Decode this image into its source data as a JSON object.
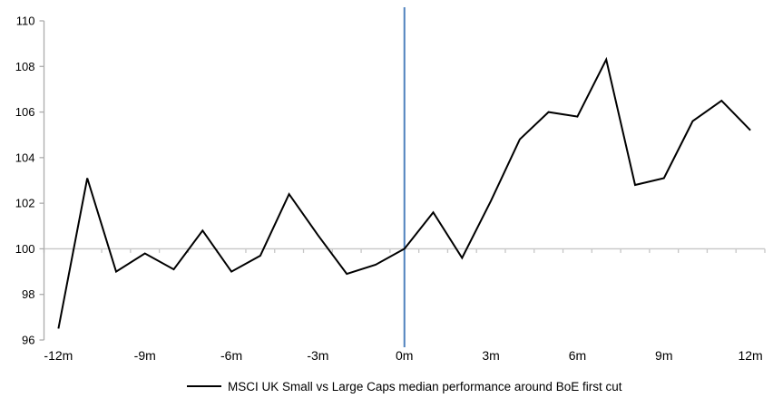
{
  "chart_data": {
    "type": "line",
    "title": "",
    "legend": "MSCI UK Small vs Large Caps median performance around BoE first cut",
    "xlabel": "",
    "ylabel": "",
    "x": [
      -12,
      -11,
      -10,
      -9,
      -8,
      -7,
      -6,
      -5,
      -4,
      -3,
      -2,
      -1,
      0,
      1,
      2,
      3,
      4,
      5,
      6,
      7,
      8,
      9,
      10,
      11,
      12
    ],
    "series": [
      {
        "name": "MSCI UK Small vs Large Caps median performance around BoE first cut",
        "values": [
          96.5,
          103.1,
          99.0,
          99.8,
          99.1,
          100.8,
          99.0,
          99.7,
          102.4,
          100.6,
          98.9,
          99.3,
          100.0,
          101.6,
          99.6,
          102.1,
          104.8,
          106.0,
          105.8,
          108.3,
          102.8,
          103.1,
          105.6,
          106.5,
          105.2
        ]
      }
    ],
    "x_tick_months": [
      -12,
      -9,
      -6,
      -3,
      0,
      3,
      6,
      9,
      12
    ],
    "x_tick_labels": [
      "-12m",
      "-9m",
      "-6m",
      "-3m",
      "0m",
      "3m",
      "6m",
      "9m",
      "12m"
    ],
    "y_ticks": [
      96,
      98,
      100,
      102,
      104,
      106,
      108,
      110
    ],
    "ylim": [
      96,
      110
    ],
    "xlim": [
      -12.5,
      12.5
    ],
    "baseline_value": 100,
    "event_line_x": 0,
    "grid": "off",
    "legend_position": "bottom-center",
    "colors": {
      "series": "#000000",
      "y_axis": "#ACACAC",
      "baseline_axis": "#C6C6C6",
      "event_line": "#4F81BD",
      "text": "#000000"
    }
  }
}
